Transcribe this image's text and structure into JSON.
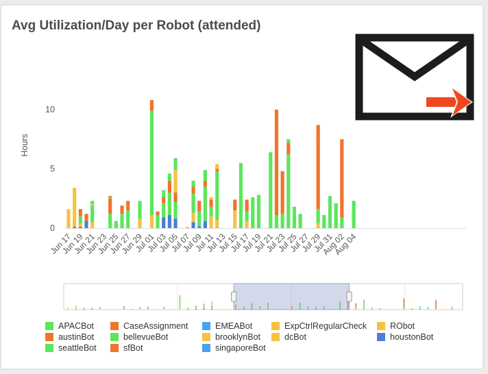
{
  "title": "Avg Utilization/Day per Robot (attended)",
  "icons": {
    "export": "mail-export-icon"
  },
  "chart_data": {
    "type": "bar",
    "stacked": true,
    "title": "Avg Utilization/Day per Robot (attended)",
    "ylabel": "Hours",
    "xlabel": "",
    "ylim": [
      0,
      13
    ],
    "yticks": [
      0,
      5,
      10
    ],
    "x_tick_labels": [
      "Jun 17",
      "Jun 19",
      "Jun 21",
      "Jun 23",
      "Jun 25",
      "Jun 27",
      "Jun 29",
      "Jul 01",
      "Jul 03",
      "Jul 05",
      "Jul 07",
      "Jul 09",
      "Jul 11",
      "Jul 13",
      "Jul 15",
      "Jul 17",
      "Jul 19",
      "Jul 21",
      "Jul 23",
      "Jul 25",
      "Jul 27",
      "Jul 29",
      "Jul 31",
      "Aug 02",
      "Aug 04"
    ],
    "categories": [
      "Jun 17",
      "Jun 18",
      "Jun 19",
      "Jun 20",
      "Jun 21",
      "Jun 22",
      "Jun 23",
      "Jun 24",
      "Jun 25",
      "Jun 26",
      "Jun 27",
      "Jun 28",
      "Jun 29",
      "Jun 30",
      "Jul 01",
      "Jul 02",
      "Jul 03",
      "Jul 04",
      "Jul 05",
      "Jul 06",
      "Jul 07",
      "Jul 08",
      "Jul 09",
      "Jul 10",
      "Jul 11",
      "Jul 12",
      "Jul 13",
      "Jul 14",
      "Jul 15",
      "Jul 16",
      "Jul 17",
      "Jul 18",
      "Jul 19",
      "Jul 20",
      "Jul 21",
      "Jul 22",
      "Jul 23",
      "Jul 24",
      "Jul 25",
      "Jul 26",
      "Jul 27",
      "Jul 28",
      "Jul 29",
      "Jul 30",
      "Jul 31",
      "Aug 01",
      "Aug 02",
      "Aug 03",
      "Aug 04"
    ],
    "series": [
      {
        "name": "houstonBot",
        "color": "#4a7fd6",
        "values": [
          0,
          0.1,
          0.1,
          0.6,
          0,
          0,
          0,
          0,
          0,
          0,
          0,
          0,
          0,
          0,
          0,
          0,
          0.9,
          1.1,
          0.8,
          0,
          0,
          0.5,
          0.1,
          0.6,
          0,
          0,
          0,
          0,
          0,
          0,
          0,
          0,
          0,
          0,
          0,
          0,
          0,
          0,
          0,
          0,
          0,
          0,
          0,
          0,
          0,
          0,
          0,
          0,
          0
        ]
      },
      {
        "name": "singaporeBot",
        "color": "#4aa3f2",
        "values": [
          0,
          0,
          0,
          0,
          0,
          0,
          0,
          0,
          0,
          0,
          0,
          0,
          0,
          0,
          0,
          0,
          0,
          0,
          0,
          0,
          0,
          0,
          0.1,
          0,
          0,
          0,
          0,
          0,
          0,
          0,
          0,
          0,
          0,
          0,
          0,
          0,
          0,
          0,
          0,
          0,
          0,
          0,
          0,
          0,
          0,
          0,
          0,
          0,
          0
        ]
      },
      {
        "name": "ROBot",
        "color": "#f5c242",
        "values": [
          1.6,
          3.3,
          0.3,
          0,
          0.5,
          0,
          0,
          0,
          0,
          0,
          0,
          0,
          0.8,
          0,
          1.1,
          0,
          0,
          0,
          0,
          0,
          0.1,
          0.8,
          0,
          0,
          1.0,
          0.7,
          0,
          0,
          1.5,
          0,
          0.6,
          0,
          0,
          0,
          0,
          0,
          0,
          0,
          0,
          0,
          0,
          0,
          0.4,
          0,
          0,
          0,
          0,
          0,
          0
        ]
      },
      {
        "name": "bellevueBot",
        "color": "#5ce65c",
        "values": [
          0,
          0,
          0.6,
          0,
          1.4,
          0,
          0,
          1.2,
          0.6,
          1.2,
          1.5,
          0,
          1.4,
          0,
          8.8,
          1.1,
          1.2,
          1.9,
          1.4,
          0,
          0,
          1.6,
          1.2,
          2.9,
          0.8,
          4.1,
          0,
          0,
          0,
          5.2,
          0.8,
          2.6,
          2.2,
          0,
          6.4,
          1.1,
          1.2,
          6.2,
          1.4,
          1.2,
          0,
          0,
          1.2,
          1.1,
          1.5,
          1.3,
          0.9,
          0,
          1.1
        ]
      },
      {
        "name": "CaseAssignment",
        "color": "#f0742b",
        "values": [
          0,
          0,
          0.6,
          0.6,
          0,
          0,
          0,
          1.3,
          0,
          0.7,
          0.8,
          0,
          0,
          0,
          0.9,
          0.3,
          0.5,
          1.0,
          0.8,
          0,
          0,
          0.6,
          0.9,
          0.5,
          0.6,
          0.2,
          0,
          0,
          0.9,
          0,
          1.0,
          0,
          0,
          0,
          0,
          8.9,
          3.6,
          1.0,
          0,
          0,
          0,
          0,
          5.9,
          0,
          0,
          0,
          6.6,
          0,
          0
        ]
      },
      {
        "name": "brooklynBot",
        "color": "#f5c242",
        "values": [
          0,
          0,
          0,
          0,
          0.1,
          0,
          0,
          0,
          0,
          0,
          0,
          0,
          0,
          0,
          0,
          0,
          0,
          0,
          1.9,
          0,
          0,
          0,
          0,
          0,
          0.2,
          0.2,
          0,
          0,
          0,
          0,
          0,
          0,
          0,
          0,
          0,
          0,
          0,
          0,
          0,
          0,
          0,
          0,
          0,
          0,
          0,
          0,
          0,
          0,
          0
        ]
      },
      {
        "name": "seattleBot",
        "color": "#5ce65c",
        "values": [
          0,
          0,
          0,
          0,
          0.3,
          0,
          0,
          0.1,
          0,
          0,
          0,
          0,
          0.1,
          0,
          0,
          0,
          0.6,
          0.6,
          1.0,
          0,
          0,
          0.5,
          0,
          0.9,
          0,
          0,
          0,
          0,
          0,
          0.3,
          0,
          0,
          0.6,
          0,
          0,
          0,
          0,
          0.3,
          0.4,
          0,
          0,
          0,
          0,
          0,
          1.2,
          0.8,
          0,
          0,
          1.2
        ]
      },
      {
        "name": "sfBot",
        "color": "#f0742b",
        "values": [
          0,
          0,
          0,
          0,
          0,
          0,
          0,
          0.1,
          0,
          0,
          0,
          0,
          0,
          0,
          0,
          0,
          0,
          0,
          0,
          0,
          0,
          0,
          0,
          0,
          0,
          0,
          0,
          0,
          0,
          0,
          0,
          0,
          0,
          0,
          0,
          0,
          0,
          0,
          0,
          0,
          0,
          0,
          1.2,
          0,
          0,
          0,
          0,
          0,
          0
        ]
      },
      {
        "name": "dcBot",
        "color": "#f5c242",
        "values": [
          0,
          0,
          0,
          0,
          0,
          0,
          0,
          0,
          0,
          0,
          0,
          0,
          0,
          0,
          0,
          0,
          0,
          0,
          0,
          0,
          0,
          0,
          0,
          0,
          0,
          0.2,
          0,
          0,
          0,
          0,
          0,
          0,
          0,
          0,
          0,
          0,
          0,
          0,
          0,
          0,
          0,
          0,
          0,
          0,
          0,
          0,
          0,
          0,
          0
        ]
      }
    ],
    "legend": {
      "position": "bottom",
      "entries": [
        {
          "name": "APACBot",
          "color": "#5ce65c"
        },
        {
          "name": "CaseAssignment",
          "color": "#f0742b"
        },
        {
          "name": "EMEABot",
          "color": "#4aa3f2"
        },
        {
          "name": "ExpCtrlRegularCheck",
          "color": "#f5c242"
        },
        {
          "name": "RObot",
          "color": "#f5c242"
        },
        {
          "name": "austinBot",
          "color": "#f0742b"
        },
        {
          "name": "bellevueBot",
          "color": "#5ce65c"
        },
        {
          "name": "brooklynBot",
          "color": "#f5c242"
        },
        {
          "name": "dcBot",
          "color": "#f5c242"
        },
        {
          "name": "houstonBot",
          "color": "#4a7fd6"
        },
        {
          "name": "seattleBot",
          "color": "#5ce65c"
        },
        {
          "name": "sfBot",
          "color": "#f0742b"
        },
        {
          "name": "singaporeBot",
          "color": "#4aa3f2"
        }
      ]
    },
    "navigator": {
      "selection_start": "Jul 08",
      "selection_end": "Jul 22"
    },
    "grid": false
  }
}
